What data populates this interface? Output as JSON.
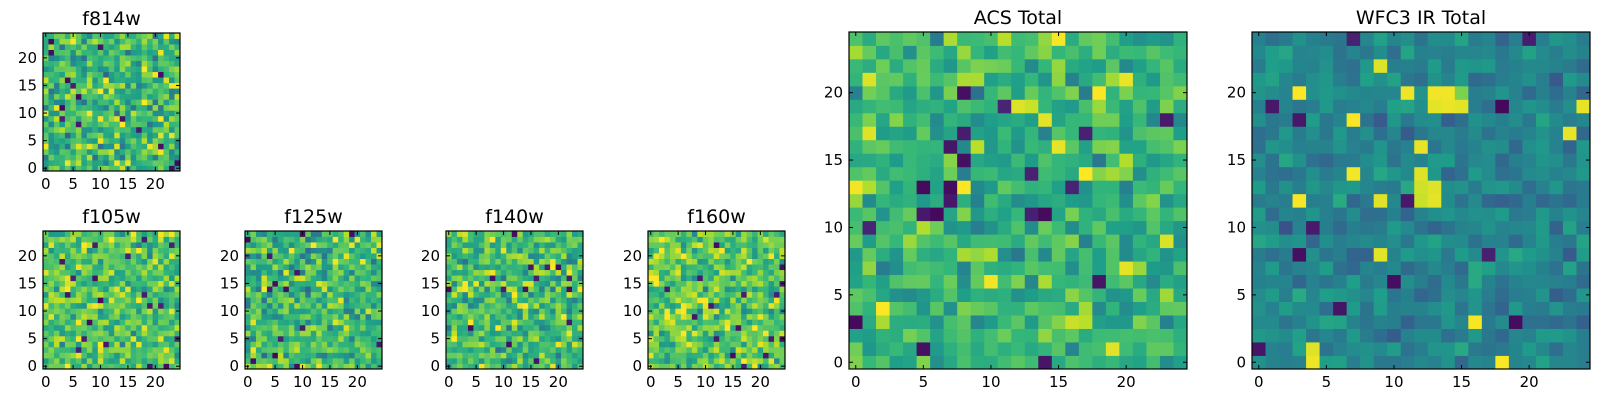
{
  "chart_data": [
    {
      "type": "heatmap",
      "title": "f814w",
      "colormap": "viridis",
      "grid_size": 25,
      "xlim": [
        -0.5,
        24.5
      ],
      "ylim": [
        -0.5,
        24.5
      ],
      "xticks": [
        0,
        5,
        10,
        15,
        20
      ],
      "yticks": [
        0,
        5,
        10,
        15,
        20
      ],
      "seed": 814,
      "mean": 0.68,
      "spread": 0.26,
      "hotspots": []
    },
    {
      "type": "heatmap",
      "title": "f105w",
      "colormap": "viridis",
      "grid_size": 25,
      "xlim": [
        -0.5,
        24.5
      ],
      "ylim": [
        -0.5,
        24.5
      ],
      "xticks": [
        0,
        5,
        10,
        15,
        20
      ],
      "yticks": [
        0,
        5,
        10,
        15,
        20
      ],
      "seed": 105,
      "mean": 0.72,
      "spread": 0.22,
      "hotspots": []
    },
    {
      "type": "heatmap",
      "title": "f125w",
      "colormap": "viridis",
      "grid_size": 25,
      "xlim": [
        -0.5,
        24.5
      ],
      "ylim": [
        -0.5,
        24.5
      ],
      "xticks": [
        0,
        5,
        10,
        15,
        20
      ],
      "yticks": [
        0,
        5,
        10,
        15,
        20
      ],
      "seed": 125,
      "mean": 0.68,
      "spread": 0.24,
      "hotspots": []
    },
    {
      "type": "heatmap",
      "title": "f140w",
      "colormap": "viridis",
      "grid_size": 25,
      "xlim": [
        -0.5,
        24.5
      ],
      "ylim": [
        -0.5,
        24.5
      ],
      "xticks": [
        0,
        5,
        10,
        15,
        20
      ],
      "yticks": [
        0,
        5,
        10,
        15,
        20
      ],
      "seed": 140,
      "mean": 0.7,
      "spread": 0.24,
      "hotspots": []
    },
    {
      "type": "heatmap",
      "title": "f160w",
      "colormap": "viridis",
      "grid_size": 25,
      "xlim": [
        -0.5,
        24.5
      ],
      "ylim": [
        -0.5,
        24.5
      ],
      "xticks": [
        0,
        5,
        10,
        15,
        20
      ],
      "yticks": [
        0,
        5,
        10,
        15,
        20
      ],
      "seed": 160,
      "mean": 0.74,
      "spread": 0.22,
      "hotspots": []
    },
    {
      "type": "heatmap",
      "title": "ACS Total",
      "colormap": "viridis",
      "grid_size": 25,
      "xlim": [
        -0.5,
        24.5
      ],
      "ylim": [
        -0.5,
        24.5
      ],
      "xticks": [
        0,
        5,
        10,
        15,
        20
      ],
      "yticks": [
        0,
        5,
        10,
        15,
        20
      ],
      "seed": 2024,
      "mean": 0.66,
      "spread": 0.2,
      "hotspots": []
    },
    {
      "type": "heatmap",
      "title": "WFC3 IR Total",
      "colormap": "viridis",
      "grid_size": 25,
      "xlim": [
        -0.5,
        24.5
      ],
      "ylim": [
        -0.5,
        24.5
      ],
      "xticks": [
        0,
        5,
        10,
        15,
        20
      ],
      "yticks": [
        0,
        5,
        10,
        15,
        20
      ],
      "seed": 3031,
      "mean": 0.45,
      "spread": 0.13,
      "hotspots": [
        {
          "x": 13,
          "y": 20,
          "v": 0.98
        },
        {
          "x": 14,
          "y": 20,
          "v": 0.98
        },
        {
          "x": 13,
          "y": 19,
          "v": 0.96
        },
        {
          "x": 14,
          "y": 19,
          "v": 0.97
        },
        {
          "x": 12,
          "y": 13,
          "v": 0.93
        },
        {
          "x": 13,
          "y": 13,
          "v": 0.95
        },
        {
          "x": 12,
          "y": 12,
          "v": 0.92
        },
        {
          "x": 13,
          "y": 12,
          "v": 0.96
        },
        {
          "x": 15,
          "y": 20,
          "v": 0.8
        }
      ]
    }
  ]
}
